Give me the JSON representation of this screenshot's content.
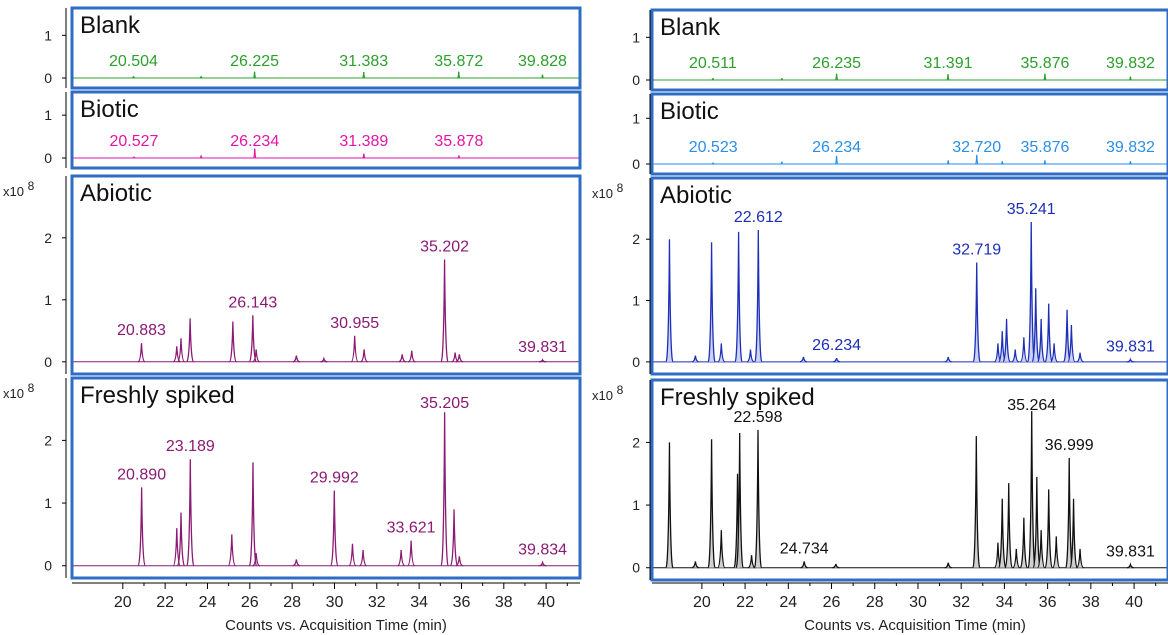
{
  "x_axis_label": "Counts vs. Acquisition Time (min)",
  "panels": [
    {
      "id": "left",
      "x_axis_label": "Counts vs. Acquisition Time (min)",
      "xlim": [
        17.6,
        41.6
      ],
      "x_ticks": [
        20,
        22,
        24,
        26,
        28,
        30,
        32,
        34,
        36,
        38,
        40
      ],
      "subplots": [
        {
          "title": "Blank",
          "color": "#2ca02c",
          "ylim": [
            0,
            1.5
          ],
          "y_ticks": [
            0,
            1
          ],
          "multiplier": "",
          "peaks": [
            [
              20.504,
              0.04
            ],
            [
              23.7,
              0.04
            ],
            [
              26.225,
              0.15
            ],
            [
              31.383,
              0.14
            ],
            [
              35.872,
              0.15
            ],
            [
              39.828,
              0.08
            ]
          ],
          "peak_labels": [
            [
              "20.504",
              20.504,
              0.04
            ],
            [
              "26.225",
              26.225,
              0.15
            ],
            [
              "31.383",
              31.383,
              0.14
            ],
            [
              "35.872",
              35.872,
              0.15
            ],
            [
              "39.828",
              39.828,
              0.08
            ]
          ]
        },
        {
          "title": "Biotic",
          "color": "#e316a8",
          "ylim": [
            0,
            1.4
          ],
          "y_ticks": [
            0,
            1
          ],
          "multiplier": "",
          "peaks": [
            [
              20.527,
              0.03
            ],
            [
              23.7,
              0.06
            ],
            [
              26.234,
              0.22
            ],
            [
              31.389,
              0.1
            ],
            [
              35.878,
              0.06
            ]
          ],
          "peak_labels": [
            [
              "20.527",
              20.527,
              0.03
            ],
            [
              "26.234",
              26.234,
              0.22
            ],
            [
              "31.389",
              31.389,
              0.1
            ],
            [
              "35.878",
              35.878,
              0.06
            ]
          ]
        },
        {
          "title": "Abiotic",
          "color": "#8b1a74",
          "ylim": [
            -0.1,
            2.9
          ],
          "y_ticks": [
            0,
            1,
            2
          ],
          "multiplier": "x10 8",
          "peaks": [
            [
              20.883,
              0.3
            ],
            [
              22.55,
              0.25
            ],
            [
              22.75,
              0.38
            ],
            [
              23.18,
              0.7
            ],
            [
              25.2,
              0.65
            ],
            [
              26.143,
              0.75
            ],
            [
              26.3,
              0.2
            ],
            [
              28.2,
              0.1
            ],
            [
              29.5,
              0.05
            ],
            [
              30.955,
              0.42
            ],
            [
              31.4,
              0.2
            ],
            [
              33.2,
              0.12
            ],
            [
              33.65,
              0.18
            ],
            [
              35.202,
              1.65
            ],
            [
              35.7,
              0.15
            ],
            [
              35.9,
              0.12
            ],
            [
              39.831,
              0.03
            ]
          ],
          "peak_labels": [
            [
              "20.883",
              20.883,
              0.3
            ],
            [
              "26.143",
              26.143,
              0.75
            ],
            [
              "30.955",
              30.955,
              0.42
            ],
            [
              "35.202",
              35.202,
              1.65
            ],
            [
              "39.831",
              39.831,
              0.03
            ]
          ]
        },
        {
          "title": "Freshly spiked",
          "color": "#8b1a74",
          "ylim": [
            -0.1,
            2.9
          ],
          "y_ticks": [
            0,
            1,
            2
          ],
          "multiplier": "x10 8",
          "peaks": [
            [
              20.89,
              1.25
            ],
            [
              22.55,
              0.6
            ],
            [
              22.75,
              0.85
            ],
            [
              23.189,
              1.7
            ],
            [
              25.15,
              0.5
            ],
            [
              26.15,
              1.65
            ],
            [
              26.3,
              0.2
            ],
            [
              28.2,
              0.1
            ],
            [
              29.992,
              1.2
            ],
            [
              30.85,
              0.35
            ],
            [
              31.35,
              0.25
            ],
            [
              33.15,
              0.25
            ],
            [
              33.621,
              0.4
            ],
            [
              35.205,
              2.45
            ],
            [
              35.65,
              0.9
            ],
            [
              35.9,
              0.15
            ],
            [
              39.834,
              0.05
            ]
          ],
          "peak_labels": [
            [
              "20.890",
              20.89,
              1.25
            ],
            [
              "23.189",
              23.189,
              1.7
            ],
            [
              "29.992",
              29.992,
              1.2
            ],
            [
              "33.621",
              33.621,
              0.4
            ],
            [
              "35.205",
              35.205,
              2.45
            ],
            [
              "39.834",
              39.834,
              0.05
            ]
          ]
        }
      ]
    },
    {
      "id": "right",
      "x_axis_label": "Counts vs. Acquisition Time (min)",
      "xlim": [
        17.6,
        41.2
      ],
      "x_ticks": [
        20,
        22,
        24,
        26,
        28,
        30,
        32,
        34,
        36,
        38,
        40
      ],
      "subplots": [
        {
          "title": "Blank",
          "color": "#2ca02c",
          "ylim": [
            0,
            1.5
          ],
          "y_ticks": [
            0,
            1
          ],
          "multiplier": "",
          "peaks": [
            [
              20.511,
              0.04
            ],
            [
              23.7,
              0.04
            ],
            [
              26.235,
              0.15
            ],
            [
              31.391,
              0.14
            ],
            [
              35.876,
              0.15
            ],
            [
              39.832,
              0.08
            ]
          ],
          "peak_labels": [
            [
              "20.511",
              20.511,
              0.04
            ],
            [
              "26.235",
              26.235,
              0.15
            ],
            [
              "31.391",
              31.391,
              0.14
            ],
            [
              "35.876",
              35.876,
              0.15
            ],
            [
              "39.832",
              39.832,
              0.08
            ]
          ]
        },
        {
          "title": "Biotic",
          "color": "#2b8fe8",
          "ylim": [
            0,
            1.4
          ],
          "y_ticks": [
            0,
            1
          ],
          "multiplier": "",
          "peaks": [
            [
              20.523,
              0.03
            ],
            [
              23.7,
              0.05
            ],
            [
              26.234,
              0.18
            ],
            [
              31.4,
              0.08
            ],
            [
              32.72,
              0.2
            ],
            [
              33.9,
              0.06
            ],
            [
              35.876,
              0.08
            ],
            [
              39.832,
              0.06
            ]
          ],
          "peak_labels": [
            [
              "20.523",
              20.523,
              0.03
            ],
            [
              "26.234",
              26.234,
              0.18
            ],
            [
              "32.720",
              32.72,
              0.2
            ],
            [
              "35.876",
              35.876,
              0.08
            ],
            [
              "39.832",
              39.832,
              0.06
            ]
          ]
        },
        {
          "title": "Abiotic",
          "color": "#1c2fb8",
          "ylim": [
            -0.1,
            2.9
          ],
          "y_ticks": [
            0,
            1,
            2
          ],
          "multiplier": "x10 8",
          "fill": "#c9cdf0",
          "peaks": [
            [
              18.5,
              2.0
            ],
            [
              19.7,
              0.1
            ],
            [
              20.45,
              1.95
            ],
            [
              20.9,
              0.3
            ],
            [
              21.7,
              2.12
            ],
            [
              22.25,
              0.2
            ],
            [
              22.612,
              2.15
            ],
            [
              24.7,
              0.08
            ],
            [
              26.234,
              0.06
            ],
            [
              31.4,
              0.08
            ],
            [
              32.719,
              1.62
            ],
            [
              33.7,
              0.3
            ],
            [
              33.9,
              0.5
            ],
            [
              34.1,
              0.7
            ],
            [
              34.5,
              0.2
            ],
            [
              34.9,
              0.4
            ],
            [
              35.241,
              2.28
            ],
            [
              35.45,
              1.2
            ],
            [
              35.7,
              0.7
            ],
            [
              36.05,
              0.95
            ],
            [
              36.3,
              0.3
            ],
            [
              36.9,
              0.85
            ],
            [
              37.1,
              0.6
            ],
            [
              37.5,
              0.15
            ],
            [
              39.831,
              0.04
            ]
          ],
          "peak_labels": [
            [
              "22.612",
              22.612,
              2.15
            ],
            [
              "32.719",
              32.719,
              1.62
            ],
            [
              "35.241",
              35.241,
              2.28
            ],
            [
              "26.234",
              26.234,
              0.06
            ],
            [
              "39.831",
              39.831,
              0.04
            ]
          ]
        },
        {
          "title": "Freshly spiked",
          "color": "#111111",
          "ylim": [
            -0.1,
            2.9
          ],
          "y_ticks": [
            0,
            1,
            2
          ],
          "multiplier": "x10 8",
          "fill": "#cccccc",
          "peaks": [
            [
              18.5,
              2.0
            ],
            [
              19.7,
              0.1
            ],
            [
              20.45,
              2.05
            ],
            [
              20.9,
              0.6
            ],
            [
              21.65,
              1.5
            ],
            [
              21.75,
              2.15
            ],
            [
              22.3,
              0.2
            ],
            [
              22.598,
              2.2
            ],
            [
              24.734,
              0.1
            ],
            [
              26.2,
              0.06
            ],
            [
              31.4,
              0.08
            ],
            [
              32.7,
              2.1
            ],
            [
              33.7,
              0.4
            ],
            [
              33.9,
              1.1
            ],
            [
              34.2,
              1.35
            ],
            [
              34.55,
              0.3
            ],
            [
              34.9,
              0.8
            ],
            [
              35.264,
              2.5
            ],
            [
              35.5,
              1.45
            ],
            [
              35.7,
              0.6
            ],
            [
              36.05,
              1.25
            ],
            [
              36.4,
              0.5
            ],
            [
              36.999,
              1.75
            ],
            [
              37.2,
              1.1
            ],
            [
              37.5,
              0.3
            ],
            [
              39.831,
              0.05
            ]
          ],
          "peak_labels": [
            [
              "22.598",
              22.598,
              2.2
            ],
            [
              "24.734",
              24.734,
              0.1
            ],
            [
              "35.264",
              35.264,
              2.5
            ],
            [
              "36.999",
              36.999,
              1.75
            ],
            [
              "39.831",
              39.831,
              0.05
            ]
          ]
        }
      ]
    }
  ],
  "chart_data": [
    {
      "type": "line",
      "x_unit": "min",
      "xlabel": "Counts vs. Acquisition Time (min)",
      "series": [
        {
          "name": "Blank",
          "peaks_x": [
            20.504,
            26.225,
            31.383,
            35.872,
            39.828
          ],
          "ylim": [
            0,
            1
          ]
        },
        {
          "name": "Biotic",
          "peaks_x": [
            20.527,
            26.234,
            31.389,
            35.878
          ],
          "ylim": [
            0,
            1
          ]
        },
        {
          "name": "Abiotic",
          "peaks_x": [
            20.883,
            26.143,
            30.955,
            35.202,
            39.831
          ],
          "ylim": [
            0,
            2
          ],
          "y_multiplier": "x10 8"
        },
        {
          "name": "Freshly spiked",
          "peaks_x": [
            20.89,
            23.189,
            29.992,
            33.621,
            35.205,
            39.834
          ],
          "ylim": [
            0,
            2
          ],
          "y_multiplier": "x10 8"
        }
      ]
    },
    {
      "type": "line",
      "x_unit": "min",
      "xlabel": "Counts vs. Acquisition Time (min)",
      "series": [
        {
          "name": "Blank",
          "peaks_x": [
            20.511,
            26.235,
            31.391,
            35.876,
            39.832
          ],
          "ylim": [
            0,
            1
          ]
        },
        {
          "name": "Biotic",
          "peaks_x": [
            20.523,
            26.234,
            32.72,
            35.876,
            39.832
          ],
          "ylim": [
            0,
            1
          ]
        },
        {
          "name": "Abiotic",
          "peaks_x": [
            22.612,
            26.234,
            32.719,
            35.241,
            39.831
          ],
          "ylim": [
            0,
            2
          ],
          "y_multiplier": "x10 8"
        },
        {
          "name": "Freshly spiked",
          "peaks_x": [
            22.598,
            24.734,
            35.264,
            36.999,
            39.831
          ],
          "ylim": [
            0,
            2
          ],
          "y_multiplier": "x10 8"
        }
      ]
    }
  ]
}
